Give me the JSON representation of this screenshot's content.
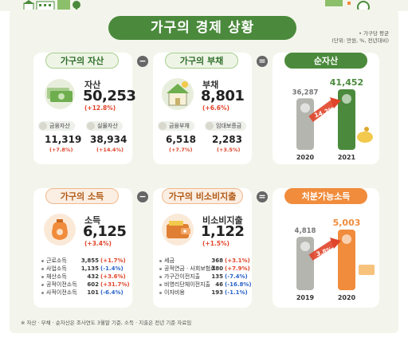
{
  "title": "가구의 경제 상황",
  "units_note": [
    "• 가구당 평균",
    "(단위: 만원, %, 전년대비)"
  ],
  "colors": {
    "green": "#4b8a3c",
    "orange": "#f08c3c",
    "up": "#e0452b",
    "down": "#2a64c8"
  },
  "assets": {
    "pill": "가구의 자산",
    "label": "자산",
    "value": "50,253",
    "change": "(+12.8%)",
    "sub": [
      {
        "tag": "금융자산",
        "value": "11,319",
        "change": "(+7.8%)"
      },
      {
        "tag": "실물자산",
        "value": "38,934",
        "change": "(+14.4%)"
      }
    ]
  },
  "debt": {
    "pill": "가구의 부채",
    "label": "부채",
    "value": "8,801",
    "change": "(+6.6%)",
    "sub": [
      {
        "tag": "금융부채",
        "value": "6,518",
        "change": "(+7.7%)"
      },
      {
        "tag": "임대보증금",
        "value": "2,283",
        "change": "(+3.5%)"
      }
    ]
  },
  "operators": {
    "minus": "−",
    "equals": "="
  },
  "net_assets": {
    "pill": "순자산",
    "chart_data": {
      "type": "bar",
      "categories": [
        "2020",
        "2021"
      ],
      "values": [
        36287,
        41452
      ],
      "value_labels": [
        "36,287",
        "41,452"
      ],
      "growth_label": "14.2%"
    }
  },
  "income": {
    "pill": "가구의 소득",
    "label": "소득",
    "value": "6,125",
    "change": "(+3.4%)",
    "items": [
      {
        "name": "근로소득",
        "value": "3,855",
        "change": "(+1.7%)",
        "dir": "up"
      },
      {
        "name": "사업소득",
        "value": "1,135",
        "change": "(-1.4%)",
        "dir": "down"
      },
      {
        "name": "재산소득",
        "value": "432",
        "change": "(+3.6%)",
        "dir": "up"
      },
      {
        "name": "공적이전소득",
        "value": "602",
        "change": "(+31.7%)",
        "dir": "up"
      },
      {
        "name": "사적이전소득",
        "value": "101",
        "change": "(-6.4%)",
        "dir": "down"
      }
    ]
  },
  "nonconsumption": {
    "pill": "가구의 비소비지출",
    "label": "비소비지출",
    "value": "1,122",
    "change": "(+1.5%)",
    "items": [
      {
        "name": "세금",
        "value": "368",
        "change": "(+3.1%)",
        "dir": "up"
      },
      {
        "name": "공적연금 · 사회보험료",
        "value": "380",
        "change": "(+7.9%)",
        "dir": "up"
      },
      {
        "name": "가구간이전지출",
        "value": "135",
        "change": "(-7.4%)",
        "dir": "down"
      },
      {
        "name": "비영리단체이전지출",
        "value": "46",
        "change": "(-16.8%)",
        "dir": "down"
      },
      {
        "name": "이자비용",
        "value": "193",
        "change": "(-1.1%)",
        "dir": "down"
      }
    ]
  },
  "disposable": {
    "pill": "처분가능소득",
    "chart_data": {
      "type": "bar",
      "categories": [
        "2019",
        "2020"
      ],
      "values": [
        4818,
        5003
      ],
      "value_labels": [
        "4,818",
        "5,003"
      ],
      "growth_label": "3.8%"
    }
  },
  "footnote": "※ 자산 · 부채 · 순자산은 조사연도 3월말 기준, 소득 · 지출은 전년 기준 자료임"
}
